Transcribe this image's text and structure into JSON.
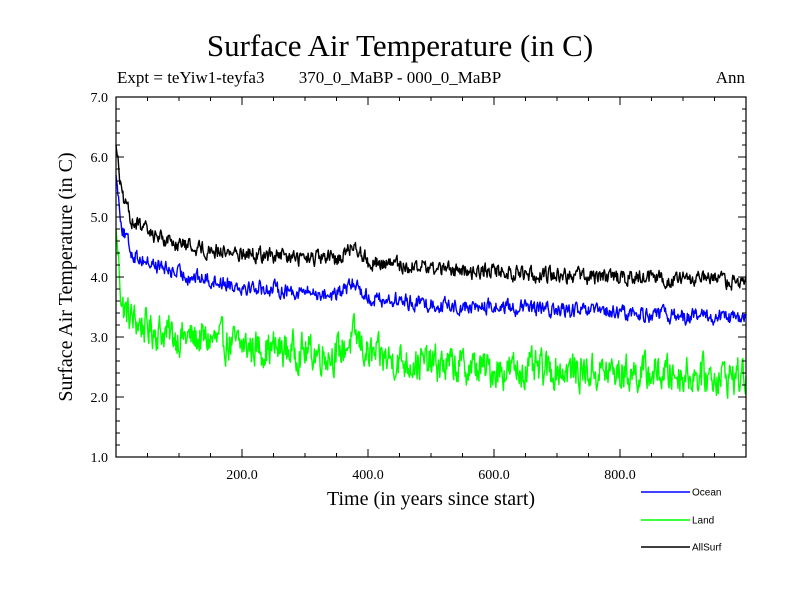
{
  "header": {
    "title": "Surface Air Temperature (in C)",
    "expt": "Expt = teYiw1-teyfa3",
    "subtitle": "370_0_MaBP - 000_0_MaBP",
    "season": "Ann"
  },
  "chart_data": {
    "type": "line",
    "title": "Surface Air Temperature (in C)",
    "xlabel": "Time (in years since start)",
    "ylabel": "Surface Air Temperature (in C)",
    "xlim": [
      0,
      1000
    ],
    "ylim": [
      1.0,
      7.0
    ],
    "xticks": [
      200,
      400,
      600,
      800
    ],
    "xtick_labels": [
      "200.0",
      "400.0",
      "600.0",
      "800.0"
    ],
    "yticks": [
      1,
      2,
      3,
      4,
      5,
      6,
      7
    ],
    "ytick_labels": [
      "1.0",
      "2.0",
      "3.0",
      "4.0",
      "5.0",
      "6.0",
      "7.0"
    ],
    "series": [
      {
        "name": "Ocean",
        "color": "#0000ff",
        "x": [
          0,
          10,
          25,
          50,
          100,
          150,
          200,
          250,
          300,
          350,
          380,
          400,
          450,
          500,
          550,
          600,
          650,
          700,
          750,
          800,
          850,
          900,
          950,
          1000
        ],
        "values": [
          5.7,
          4.8,
          4.4,
          4.25,
          4.05,
          3.95,
          3.85,
          3.8,
          3.75,
          3.7,
          3.9,
          3.65,
          3.6,
          3.55,
          3.5,
          3.5,
          3.48,
          3.45,
          3.42,
          3.4,
          3.38,
          3.35,
          3.33,
          3.3
        ]
      },
      {
        "name": "Land",
        "color": "#00ff00",
        "x": [
          0,
          10,
          25,
          50,
          100,
          150,
          200,
          250,
          300,
          350,
          380,
          400,
          450,
          500,
          550,
          600,
          650,
          700,
          750,
          800,
          850,
          900,
          950,
          1000
        ],
        "values": [
          4.8,
          3.5,
          3.3,
          3.15,
          3.0,
          2.95,
          2.85,
          2.8,
          2.75,
          2.7,
          3.0,
          2.7,
          2.6,
          2.55,
          2.5,
          2.45,
          2.45,
          2.45,
          2.42,
          2.4,
          2.4,
          2.38,
          2.35,
          2.35
        ]
      },
      {
        "name": "AllSurf",
        "color": "#000000",
        "x": [
          0,
          10,
          25,
          50,
          100,
          150,
          200,
          250,
          300,
          350,
          380,
          400,
          450,
          500,
          550,
          600,
          650,
          700,
          750,
          800,
          850,
          900,
          950,
          1000
        ],
        "values": [
          6.2,
          5.3,
          4.95,
          4.75,
          4.55,
          4.45,
          4.4,
          4.35,
          4.3,
          4.3,
          4.55,
          4.25,
          4.2,
          4.15,
          4.1,
          4.1,
          4.05,
          4.05,
          4.0,
          4.0,
          3.98,
          3.95,
          3.95,
          3.9
        ]
      }
    ],
    "legend": [
      "Ocean",
      "Land",
      "AllSurf"
    ],
    "legend_position": "bottom-right"
  }
}
